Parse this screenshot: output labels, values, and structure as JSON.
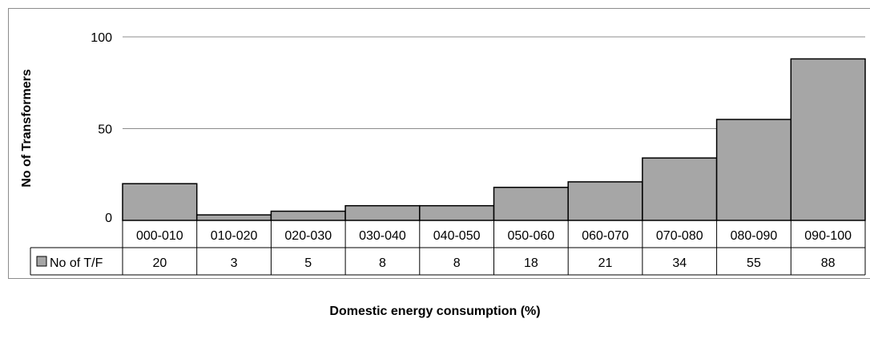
{
  "chart_data": {
    "type": "bar",
    "categories": [
      "000-010",
      "010-020",
      "020-030",
      "030-040",
      "040-050",
      "050-060",
      "060-070",
      "070-080",
      "080-090",
      "090-100"
    ],
    "series": [
      {
        "name": "No of T/F",
        "values": [
          20,
          3,
          5,
          8,
          8,
          18,
          21,
          34,
          55,
          88
        ],
        "color": "#a6a6a6"
      }
    ],
    "xlabel": "Domestic energy consumption (%)",
    "ylabel": "No of Transformers",
    "ylim": [
      0,
      100
    ],
    "yticks": [
      0,
      50,
      100
    ],
    "grid": true,
    "legend": "data-table",
    "data_table": true
  }
}
